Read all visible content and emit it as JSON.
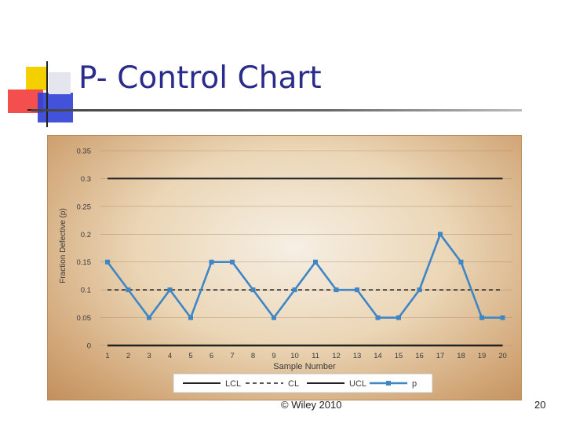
{
  "slide": {
    "title": "P- Control Chart",
    "footer": "© Wiley 2010",
    "page_number": "20"
  },
  "colors": {
    "title": "#2b2b8c",
    "series": "#3f86c6",
    "control_lines": "#222222"
  },
  "chart_data": {
    "type": "line",
    "title": "",
    "xlabel": "Sample Number",
    "ylabel": "Fraction Defective (p)",
    "ylim": [
      0,
      0.35
    ],
    "yticks": [
      0,
      0.05,
      0.1,
      0.15,
      0.2,
      0.25,
      0.3,
      0.35
    ],
    "ytick_labels": [
      "0",
      "0.05",
      "0.1",
      "0.15",
      "0.2",
      "0.25",
      "0.3",
      "0.35"
    ],
    "x": [
      1,
      2,
      3,
      4,
      5,
      6,
      7,
      8,
      9,
      10,
      11,
      12,
      13,
      14,
      15,
      16,
      17,
      18,
      19,
      20
    ],
    "series": [
      {
        "name": "p",
        "values": [
          0.15,
          0.1,
          0.05,
          0.1,
          0.05,
          0.15,
          0.15,
          0.1,
          0.05,
          0.1,
          0.15,
          0.1,
          0.1,
          0.05,
          0.05,
          0.1,
          0.2,
          0.15,
          0.05,
          0.05
        ]
      }
    ],
    "control_limits": {
      "LCL": 0,
      "CL": 0.1,
      "UCL": 0.3
    },
    "legend": {
      "position": "bottom",
      "entries": [
        "LCL",
        "CL",
        "UCL",
        "p"
      ]
    },
    "grid": true
  }
}
